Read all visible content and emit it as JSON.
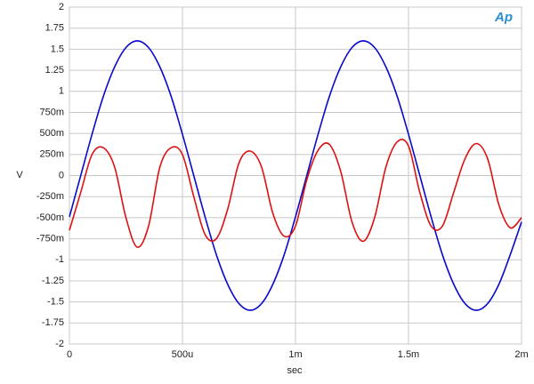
{
  "chart_data": {
    "type": "line",
    "xlabel": "sec",
    "ylabel": "V",
    "logo": "Ap",
    "x": [
      0,
      5e-05,
      0.0001,
      0.00015,
      0.0002,
      0.00025,
      0.0003,
      0.00035,
      0.0004,
      0.00045,
      0.0005,
      0.00055,
      0.0006,
      0.00065,
      0.0007,
      0.00075,
      0.0008,
      0.00085,
      0.0009,
      0.00095,
      0.001,
      0.00105,
      0.0011,
      0.00115,
      0.0012,
      0.00125,
      0.0013,
      0.00135,
      0.0014,
      0.00145,
      0.0015,
      0.00155,
      0.0016,
      0.00165,
      0.0017,
      0.00175,
      0.0018,
      0.00185,
      0.0019,
      0.00195,
      0.002
    ],
    "series": [
      {
        "color": "#0a0acc",
        "values": [
          -0.49,
          0,
          0.49,
          0.94,
          1.29,
          1.52,
          1.6,
          1.52,
          1.29,
          0.94,
          0.49,
          0,
          -0.49,
          -0.94,
          -1.29,
          -1.52,
          -1.6,
          -1.52,
          -1.29,
          -0.94,
          -0.49,
          0,
          0.49,
          0.94,
          1.29,
          1.52,
          1.6,
          1.52,
          1.29,
          0.94,
          0.49,
          0,
          -0.49,
          -0.94,
          -1.29,
          -1.52,
          -1.6,
          -1.52,
          -1.29,
          -0.94,
          -0.55
        ]
      },
      {
        "color": "#dd1111",
        "values": [
          -0.65,
          -0.2,
          0.25,
          0.33,
          0.1,
          -0.5,
          -0.85,
          -0.6,
          0.1,
          0.33,
          0.25,
          -0.25,
          -0.7,
          -0.75,
          -0.4,
          0.15,
          0.29,
          0.1,
          -0.45,
          -0.72,
          -0.6,
          -0.05,
          0.3,
          0.37,
          0.05,
          -0.55,
          -0.78,
          -0.5,
          0.1,
          0.4,
          0.35,
          -0.2,
          -0.6,
          -0.6,
          -0.2,
          0.2,
          0.38,
          0.2,
          -0.35,
          -0.62,
          -0.5
        ]
      }
    ],
    "xlim": [
      0,
      0.002
    ],
    "xticks": [
      0,
      {
        "value": 0.0005,
        "label": "500u"
      },
      {
        "value": 0.001,
        "label": "1m"
      },
      {
        "value": 0.0015,
        "label": "1.5m"
      },
      {
        "value": 0.002,
        "label": "2m"
      }
    ],
    "ylim": [
      -2,
      2
    ],
    "yticks": [
      2,
      1.75,
      1.5,
      1.25,
      1,
      {
        "value": 0.75,
        "label": "750m"
      },
      {
        "value": 0.5,
        "label": "500m"
      },
      {
        "value": 0.25,
        "label": "250m"
      },
      0,
      {
        "value": -0.25,
        "label": "-250m"
      },
      {
        "value": -0.5,
        "label": "-500m"
      },
      {
        "value": -0.75,
        "label": "-750m"
      },
      -1,
      -1.25,
      -1.5,
      -1.75,
      -2
    ],
    "grid": true
  }
}
